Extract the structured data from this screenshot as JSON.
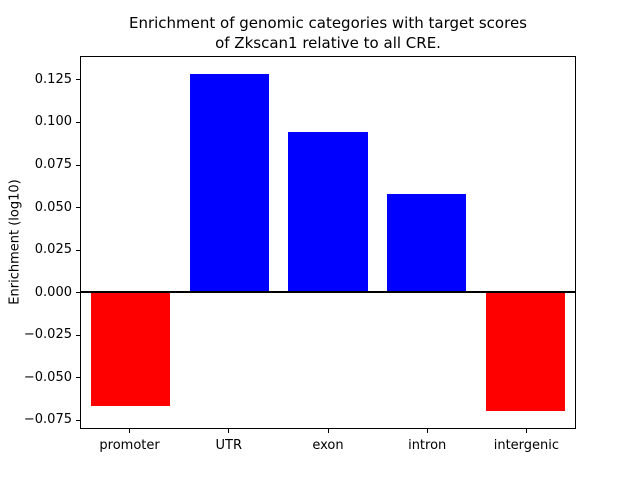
{
  "title_line1": "Enrichment of genomic categories with target scores",
  "title_line2": "of Zkscan1 relative to all CRE.",
  "ylabel": "Enrichment (log10)",
  "chart_data": {
    "type": "bar",
    "title": "Enrichment of genomic categories with target scores of Zkscan1 relative to all CRE.",
    "xlabel": "",
    "ylabel": "Enrichment (log10)",
    "categories": [
      "promoter",
      "UTR",
      "exon",
      "intron",
      "intergenic"
    ],
    "values": [
      -0.067,
      0.129,
      0.095,
      0.058,
      -0.07
    ],
    "bar_colors": [
      "#ff0000",
      "#0000ff",
      "#0000ff",
      "#0000ff",
      "#ff0000"
    ],
    "positive_color": "#0000ff",
    "negative_color": "#ff0000",
    "ylim": [
      -0.08,
      0.139
    ],
    "yticks": [
      -0.075,
      -0.05,
      -0.025,
      0.0,
      0.025,
      0.05,
      0.075,
      0.1,
      0.125
    ],
    "ytick_labels": [
      "−0.075",
      "−0.050",
      "−0.025",
      "0.000",
      "0.025",
      "0.050",
      "0.075",
      "0.100",
      "0.125"
    ],
    "zero_line": true,
    "grid": false,
    "legend": null
  }
}
